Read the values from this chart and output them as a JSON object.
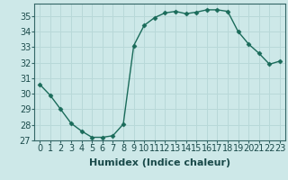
{
  "x": [
    0,
    1,
    2,
    3,
    4,
    5,
    6,
    7,
    8,
    9,
    10,
    11,
    12,
    13,
    14,
    15,
    16,
    17,
    18,
    19,
    20,
    21,
    22,
    23
  ],
  "y": [
    30.6,
    29.9,
    29.0,
    28.1,
    27.6,
    27.2,
    27.2,
    27.3,
    28.05,
    33.1,
    34.4,
    34.9,
    35.2,
    35.3,
    35.15,
    35.25,
    35.4,
    35.4,
    35.3,
    34.0,
    33.2,
    32.6,
    31.9,
    32.1
  ],
  "line_color": "#1a6b5a",
  "marker": "D",
  "marker_size": 2.5,
  "bg_color": "#cde8e8",
  "grid_color": "#b8d8d8",
  "xlabel": "Humidex (Indice chaleur)",
  "ylim": [
    27,
    35.8
  ],
  "yticks": [
    27,
    28,
    29,
    30,
    31,
    32,
    33,
    34,
    35
  ],
  "xlim": [
    -0.5,
    23.5
  ],
  "xticks": [
    0,
    1,
    2,
    3,
    4,
    5,
    6,
    7,
    8,
    9,
    10,
    11,
    12,
    13,
    14,
    15,
    16,
    17,
    18,
    19,
    20,
    21,
    22,
    23
  ],
  "xlabel_fontsize": 8,
  "tick_fontsize": 7,
  "spine_color": "#336666"
}
